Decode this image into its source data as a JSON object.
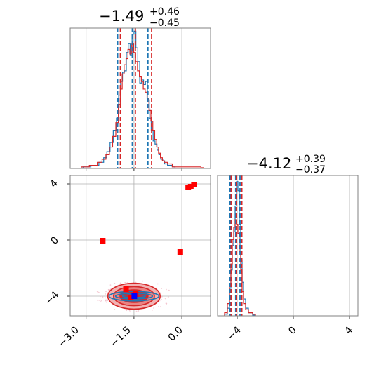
{
  "chart_data": {
    "type": "corner",
    "colors": {
      "blue": "#1f77b4",
      "red": "#d62728",
      "marker_red": "#ff0000",
      "marker_blue": "#0000ff",
      "grid": "#b0b0b0",
      "frame": "#808080"
    },
    "grid": true,
    "param1": {
      "title": {
        "value": "−1.49",
        "plus": "+0.46",
        "minus": "−0.45"
      },
      "range": [
        -3.5,
        0.9
      ],
      "ticks": [
        -3.0,
        -1.5,
        0.0
      ],
      "tick_labels": [
        "−3.0",
        "−1.5",
        "0.0"
      ],
      "quantiles_blue": [
        -1.98,
        -1.52,
        -1.03
      ],
      "quantiles_red": [
        -1.96,
        -1.49,
        -0.98
      ],
      "hist_blue": [
        [
          -3.1,
          0.01
        ],
        [
          -2.85,
          0.02
        ],
        [
          -2.6,
          0.04
        ],
        [
          -2.45,
          0.07
        ],
        [
          -2.35,
          0.11
        ],
        [
          -2.25,
          0.17
        ],
        [
          -2.15,
          0.25
        ],
        [
          -2.05,
          0.33
        ],
        [
          -1.98,
          0.48
        ],
        [
          -1.92,
          0.57
        ],
        [
          -1.86,
          0.63
        ],
        [
          -1.8,
          0.64
        ],
        [
          -1.74,
          0.76
        ],
        [
          -1.68,
          0.82
        ],
        [
          -1.62,
          0.74
        ],
        [
          -1.56,
          0.88
        ],
        [
          -1.5,
          0.9
        ],
        [
          -1.44,
          0.79
        ],
        [
          -1.38,
          0.7
        ],
        [
          -1.32,
          0.56
        ],
        [
          -1.26,
          0.58
        ],
        [
          -1.2,
          0.55
        ],
        [
          -1.14,
          0.57
        ],
        [
          -1.08,
          0.45
        ],
        [
          -1.02,
          0.33
        ],
        [
          -0.96,
          0.25
        ],
        [
          -0.9,
          0.18
        ],
        [
          -0.84,
          0.16
        ],
        [
          -0.78,
          0.12
        ],
        [
          -0.72,
          0.09
        ],
        [
          -0.66,
          0.06
        ],
        [
          -0.6,
          0.05
        ],
        [
          -0.54,
          0.03
        ],
        [
          -0.45,
          0.02
        ],
        [
          -0.3,
          0.01
        ]
      ],
      "hist_red": [
        [
          -3.15,
          0.01
        ],
        [
          -2.9,
          0.02
        ],
        [
          -2.65,
          0.04
        ],
        [
          -2.5,
          0.06
        ],
        [
          -2.38,
          0.09
        ],
        [
          -2.27,
          0.14
        ],
        [
          -2.17,
          0.21
        ],
        [
          -2.07,
          0.3
        ],
        [
          -1.99,
          0.42
        ],
        [
          -1.93,
          0.52
        ],
        [
          -1.87,
          0.62
        ],
        [
          -1.81,
          0.68
        ],
        [
          -1.75,
          0.72
        ],
        [
          -1.69,
          0.78
        ],
        [
          -1.63,
          0.75
        ],
        [
          -1.57,
          0.82
        ],
        [
          -1.51,
          0.76
        ],
        [
          -1.45,
          0.7
        ],
        [
          -1.39,
          0.64
        ],
        [
          -1.33,
          0.6
        ],
        [
          -1.27,
          0.57
        ],
        [
          -1.21,
          0.52
        ],
        [
          -1.15,
          0.5
        ],
        [
          -1.09,
          0.46
        ],
        [
          -1.03,
          0.38
        ],
        [
          -0.97,
          0.31
        ],
        [
          -0.91,
          0.25
        ],
        [
          -0.85,
          0.19
        ],
        [
          -0.79,
          0.14
        ],
        [
          -0.73,
          0.1
        ],
        [
          -0.67,
          0.07
        ],
        [
          -0.61,
          0.05
        ],
        [
          -0.55,
          0.04
        ],
        [
          -0.45,
          0.03
        ],
        [
          -0.3,
          0.01
        ],
        [
          0.0,
          0.01
        ],
        [
          0.3,
          0.01
        ],
        [
          0.6,
          0.005
        ]
      ]
    },
    "param2": {
      "title": {
        "value": "−4.12",
        "plus": "+0.39",
        "minus": "−0.37"
      },
      "range": [
        -5.4,
        4.6
      ],
      "ticks": [
        -4,
        0,
        4
      ],
      "tick_labels": [
        "−4",
        "0",
        "4"
      ],
      "quantiles_blue": [
        -4.46,
        -4.05,
        -3.74
      ],
      "quantiles_red": [
        -4.49,
        -4.12,
        -3.73
      ],
      "hist_blue": [
        [
          -4.9,
          0.01
        ],
        [
          -4.7,
          0.05
        ],
        [
          -4.55,
          0.18
        ],
        [
          -4.45,
          0.3
        ],
        [
          -4.35,
          0.46
        ],
        [
          -4.25,
          0.55
        ],
        [
          -4.15,
          0.72
        ],
        [
          -4.05,
          0.88
        ],
        [
          -3.95,
          0.82
        ],
        [
          -3.85,
          0.6
        ],
        [
          -3.75,
          0.36
        ],
        [
          -3.65,
          0.22
        ],
        [
          -3.55,
          0.11
        ],
        [
          -3.4,
          0.05
        ],
        [
          -3.2,
          0.02
        ],
        [
          -2.9,
          0.005
        ]
      ],
      "hist_red": [
        [
          -4.9,
          0.02
        ],
        [
          -4.7,
          0.08
        ],
        [
          -4.55,
          0.2
        ],
        [
          -4.45,
          0.34
        ],
        [
          -4.35,
          0.5
        ],
        [
          -4.25,
          0.58
        ],
        [
          -4.15,
          0.63
        ],
        [
          -4.05,
          0.6
        ],
        [
          -3.95,
          0.54
        ],
        [
          -3.85,
          0.42
        ],
        [
          -3.75,
          0.3
        ],
        [
          -3.65,
          0.16
        ],
        [
          -3.55,
          0.08
        ],
        [
          -3.4,
          0.04
        ],
        [
          -3.2,
          0.02
        ],
        [
          -2.9,
          0.01
        ]
      ]
    },
    "joint": {
      "xrange": [
        -3.5,
        0.9
      ],
      "yrange": [
        -5.4,
        4.6
      ],
      "x_ticks": [
        -3.0,
        -1.5,
        0.0
      ],
      "x_tick_labels": [
        "−3.0",
        "−1.5",
        "0.0"
      ],
      "y_ticks": [
        -4,
        0,
        4
      ],
      "y_tick_labels": [
        "−4",
        "0",
        "4"
      ],
      "center": [
        -1.5,
        -4.0
      ],
      "contours_red": [
        {
          "rx": 0.82,
          "ry": 0.92,
          "fill": "#f2b3b3"
        },
        {
          "rx": 0.64,
          "ry": 0.68,
          "fill": "#e98383"
        },
        {
          "rx": 0.44,
          "ry": 0.45,
          "fill": "#d62728"
        }
      ],
      "contours_blue": [
        {
          "rx": 0.78,
          "ry": 0.34
        },
        {
          "rx": 0.58,
          "ry": 0.2
        },
        {
          "rx": 0.36,
          "ry": 0.1
        }
      ],
      "red_markers": [
        [
          0.2,
          3.75
        ],
        [
          0.28,
          3.8
        ],
        [
          0.38,
          3.95
        ],
        [
          -2.48,
          -0.05
        ],
        [
          -0.05,
          -0.85
        ],
        [
          -1.75,
          -3.5
        ],
        [
          -1.45,
          -3.85
        ],
        [
          -1.6,
          -4.1
        ]
      ],
      "blue_marker": [
        -1.49,
        -4.0
      ]
    }
  }
}
